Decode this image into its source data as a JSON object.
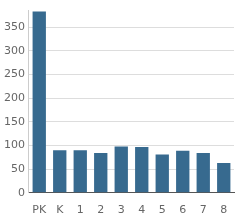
{
  "chart_data": {
    "type": "bar",
    "categories": [
      "PK",
      "K",
      "1",
      "2",
      "3",
      "4",
      "5",
      "6",
      "7",
      "8"
    ],
    "values": [
      383,
      90,
      90,
      84,
      98,
      97,
      81,
      89,
      84,
      63
    ],
    "color": "#376a8f",
    "ylim": [
      0,
      385
    ],
    "yticks": [
      0,
      50,
      100,
      150,
      200,
      250,
      300,
      350
    ],
    "grid": true
  }
}
